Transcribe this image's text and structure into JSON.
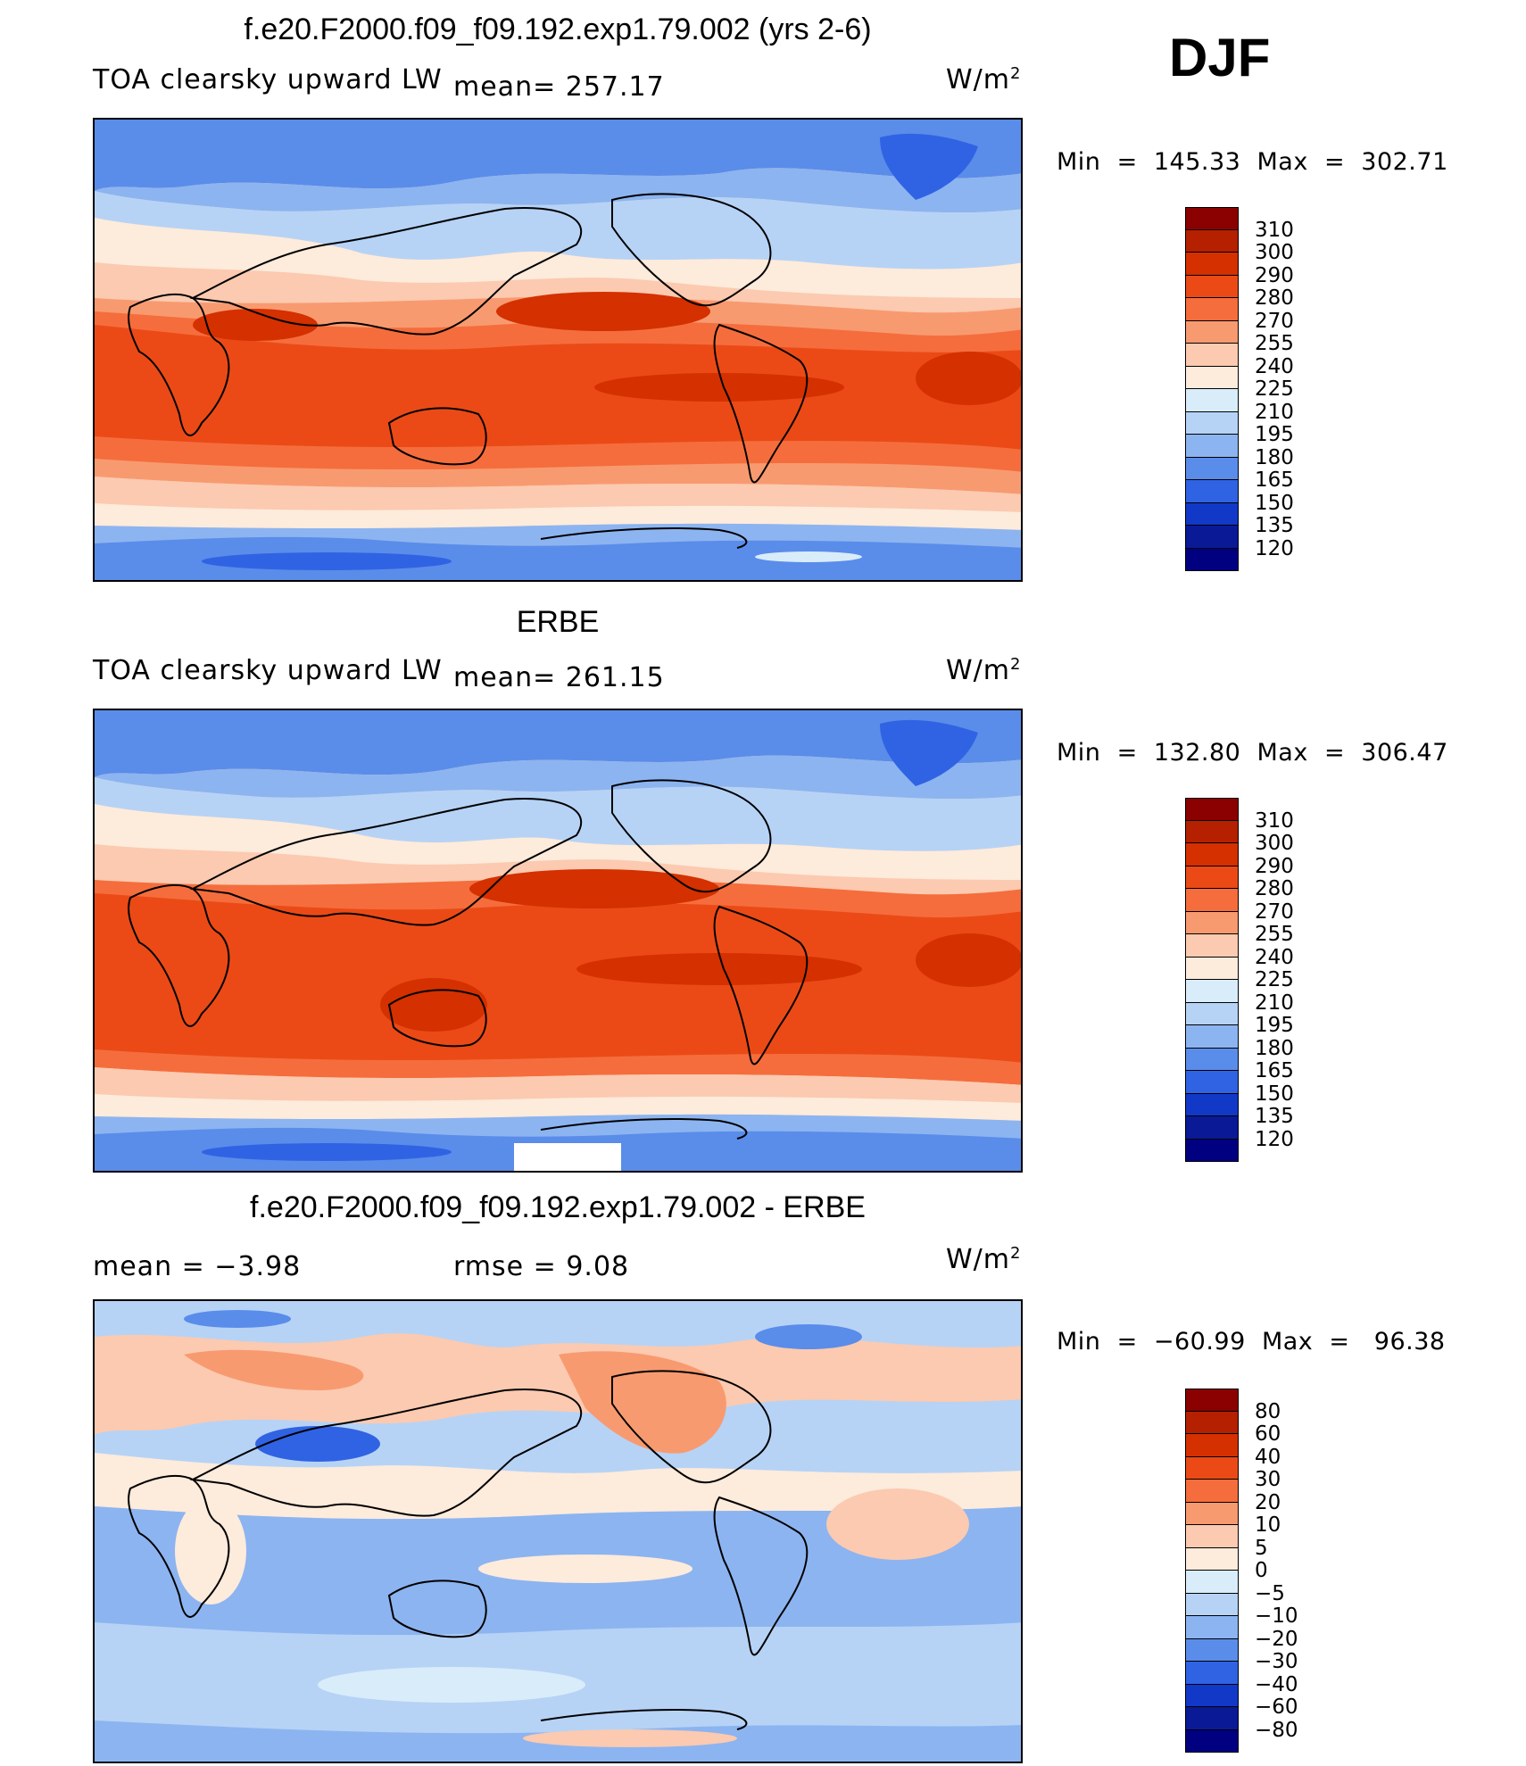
{
  "panels": [
    {
      "title": "f.e20.F2000.f09_f09.192.exp1.79.002 (yrs 2-6)",
      "left_label": "TOA clearsky upward LW",
      "mean_label": "mean= 257.17",
      "unit": "W/m",
      "unit_sup": "2",
      "minmax": "Min  =  145.33  Max  =  302.71",
      "levels": [
        "310",
        "300",
        "290",
        "280",
        "270",
        "255",
        "240",
        "225",
        "210",
        "195",
        "180",
        "165",
        "150",
        "135",
        "120"
      ],
      "colors": [
        "#8b0000",
        "#b52000",
        "#d43000",
        "#eb4a16",
        "#f56d3c",
        "#f89a70",
        "#fbcab0",
        "#fdebdc",
        "#d9ecfa",
        "#b6d3f6",
        "#8cb4f0",
        "#5a8cea",
        "#3063e3",
        "#1238c8",
        "#0a1a96",
        "#000080"
      ]
    },
    {
      "title": "ERBE",
      "left_label": "TOA clearsky upward LW",
      "mean_label": "mean= 261.15",
      "unit": "W/m",
      "unit_sup": "2",
      "minmax": "Min  =  132.80  Max  =  306.47",
      "levels": [
        "310",
        "300",
        "290",
        "280",
        "270",
        "255",
        "240",
        "225",
        "210",
        "195",
        "180",
        "165",
        "150",
        "135",
        "120"
      ],
      "colors": [
        "#8b0000",
        "#b52000",
        "#d43000",
        "#eb4a16",
        "#f56d3c",
        "#f89a70",
        "#fbcab0",
        "#fdebdc",
        "#d9ecfa",
        "#b6d3f6",
        "#8cb4f0",
        "#5a8cea",
        "#3063e3",
        "#1238c8",
        "#0a1a96",
        "#000080"
      ]
    },
    {
      "title": "f.e20.F2000.f09_f09.192.exp1.79.002 - ERBE",
      "left_label": "mean =    −3.98",
      "mean_label": "rmse =     9.08",
      "unit": "W/m",
      "unit_sup": "2",
      "minmax": "Min  =  −60.99  Max  =   96.38",
      "levels": [
        "80",
        "60",
        "40",
        "30",
        "20",
        "10",
        "5",
        "0",
        "−5",
        "−10",
        "−20",
        "−30",
        "−40",
        "−60",
        "−80"
      ],
      "colors": [
        "#8b0000",
        "#b52000",
        "#d43000",
        "#eb4a16",
        "#f56d3c",
        "#f89a70",
        "#fbcab0",
        "#fdebdc",
        "#d9ecfa",
        "#b6d3f6",
        "#8cb4f0",
        "#5a8cea",
        "#3063e3",
        "#1238c8",
        "#0a1a96",
        "#000080"
      ]
    }
  ],
  "season": "DJF"
}
